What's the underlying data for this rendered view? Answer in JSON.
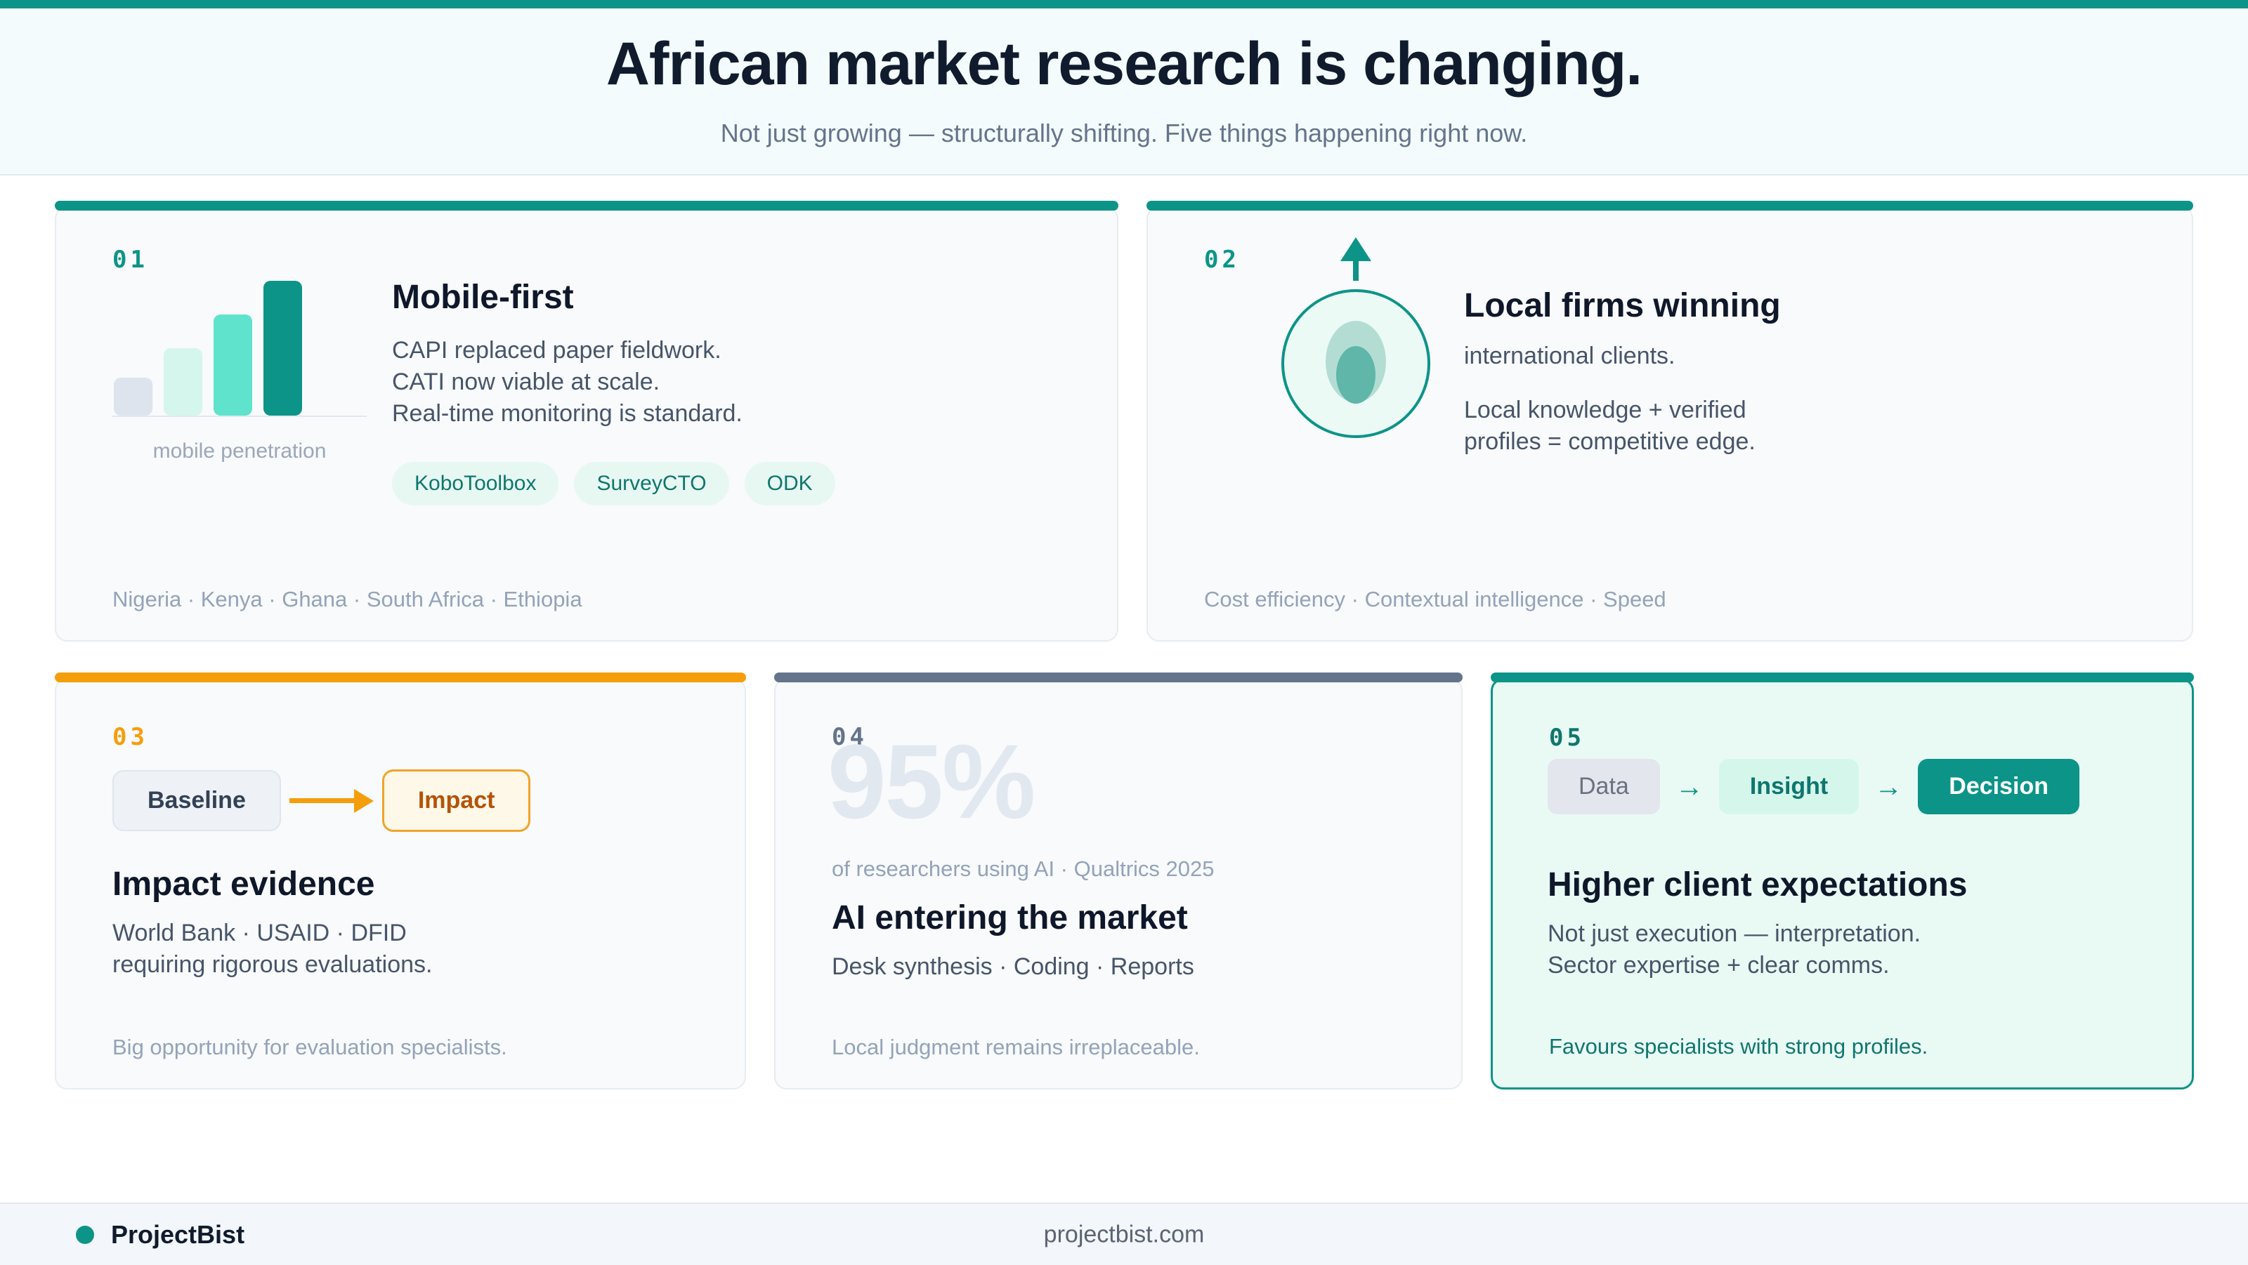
{
  "colors": {
    "teal": "#0d9488",
    "teal_text": "#0f766e",
    "orange": "#f59e0b",
    "orange_text": "#b45309",
    "slate": "#64748b",
    "navy": "#101b2e",
    "stat_gray": "#e2e8f0"
  },
  "header": {
    "title": "African market research is changing.",
    "subtitle": "Not just growing — structurally shifting. Five things happening right now."
  },
  "card1": {
    "number": "01",
    "title": "Mobile-first",
    "lines": [
      "CAPI replaced paper fieldwork.",
      "CATI now viable at scale.",
      "Real-time monitoring is standard."
    ],
    "tags": [
      "KoboToolbox",
      "SurveyCTO",
      "ODK"
    ],
    "chart": {
      "type": "bar",
      "label": "mobile penetration",
      "values": [
        28,
        50,
        75,
        100
      ],
      "bar_colors": [
        "#dde4ee",
        "#d5f6ec",
        "#5fe3cc",
        "#0d9488"
      ]
    },
    "footnote": "Nigeria · Kenya · Ghana · South Africa · Ethiopia"
  },
  "card2": {
    "number": "02",
    "title": "Local firms winning",
    "subtitle": "international clients.",
    "lines": [
      "Local knowledge + verified",
      "profiles = competitive edge."
    ],
    "footnote": "Cost efficiency · Contextual intelligence · Speed"
  },
  "card3": {
    "number": "03",
    "flow": {
      "from": "Baseline",
      "to": "Impact"
    },
    "title": "Impact evidence",
    "lines": [
      "World Bank · USAID · DFID",
      "requiring rigorous evaluations."
    ],
    "footnote": "Big opportunity for evaluation specialists."
  },
  "card4": {
    "number": "04",
    "stat": "95%",
    "stat_caption": "of researchers using AI · Qualtrics 2025",
    "title": "AI entering the market",
    "lines": [
      "Desk synthesis · Coding · Reports"
    ],
    "footnote": "Local judgment remains irreplaceable."
  },
  "card5": {
    "number": "05",
    "chips": [
      "Data",
      "Insight",
      "Decision"
    ],
    "title": "Higher client expectations",
    "lines": [
      "Not just execution — interpretation.",
      "Sector expertise + clear comms."
    ],
    "footnote": "Favours specialists with strong profiles."
  },
  "footer": {
    "brand": "ProjectBist",
    "url": "projectbist.com"
  }
}
